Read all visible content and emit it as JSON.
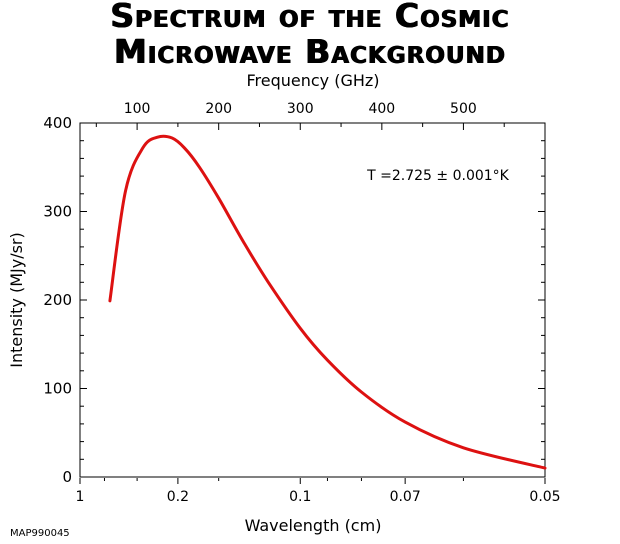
{
  "title_line1": "Spectrum of the Cosmic",
  "title_line2": "Microwave Background",
  "credit": "MAP990045",
  "chart_data": {
    "type": "line",
    "xlabel": "Wavelength (cm)",
    "x2label": "Frequency (GHz)",
    "ylabel": "Intensity (MJy/sr)",
    "annotation": "T =2.725 ± 0.001°K",
    "x_scale": "reciprocal",
    "xlim": [
      1,
      0.05
    ],
    "ylim": [
      0,
      400
    ],
    "yticks": [
      0,
      100,
      200,
      300,
      400
    ],
    "xticks": [
      {
        "label": "1",
        "value": 1
      },
      {
        "label": "0.2",
        "value": 0.2
      },
      {
        "label": "0.1",
        "value": 0.1
      },
      {
        "label": "0.07",
        "value": 0.07
      },
      {
        "label": "0.05",
        "value": 0.05
      }
    ],
    "x2ticks": [
      {
        "label": "100",
        "value": 100
      },
      {
        "label": "200",
        "value": 200
      },
      {
        "label": "300",
        "value": 300
      },
      {
        "label": "400",
        "value": 400
      },
      {
        "label": "500",
        "value": 500
      }
    ],
    "series": [
      {
        "color": "#dd1111",
        "x": [
          0.45,
          0.35,
          0.28,
          0.24,
          0.21,
          0.19,
          0.17,
          0.15,
          0.13,
          0.115,
          0.1,
          0.09,
          0.08,
          0.07,
          0.06,
          0.05
        ],
        "y": [
          199,
          323,
          372,
          384,
          383,
          372,
          350,
          315,
          265,
          220,
          168,
          132,
          96,
          62,
          33,
          10
        ]
      }
    ],
    "grid": false
  }
}
